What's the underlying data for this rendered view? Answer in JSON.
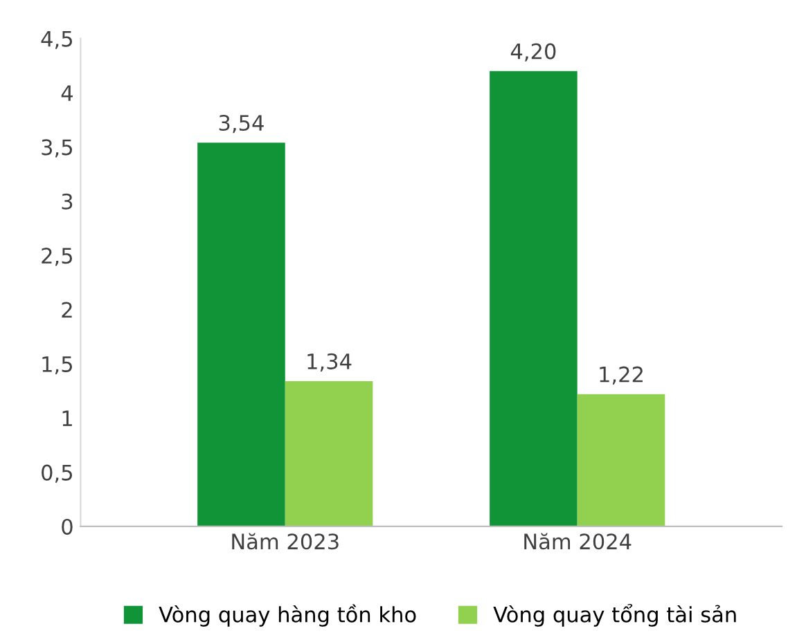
{
  "chart_data": {
    "type": "bar",
    "categories": [
      "Năm 2023",
      "Năm 2024"
    ],
    "series": [
      {
        "name": "Vòng quay hàng tồn kho",
        "color": "#119438",
        "values": [
          3.54,
          4.2
        ],
        "value_labels": [
          "3,54",
          "4,20"
        ]
      },
      {
        "name": "Vòng quay tổng tài sản",
        "color": "#92d050",
        "values": [
          1.34,
          1.22
        ],
        "value_labels": [
          "1,34",
          "1,22"
        ]
      }
    ],
    "ylim": [
      0,
      4.5
    ],
    "yticks": [
      0,
      {
        "value": 0.5,
        "label": "0,5"
      },
      1,
      {
        "value": 1.5,
        "label": "1,5"
      },
      2,
      {
        "value": 2.5,
        "label": "2,5"
      },
      3,
      {
        "value": 3.5,
        "label": "3,5"
      },
      4,
      {
        "value": 4.5,
        "label": "4,5"
      }
    ],
    "grid": false,
    "legend": "bottom"
  }
}
